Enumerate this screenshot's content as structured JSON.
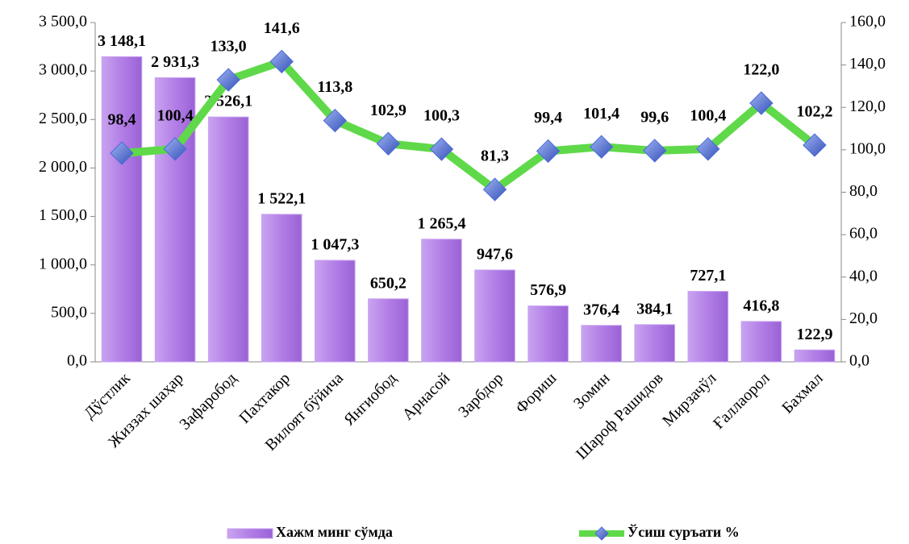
{
  "chart_data": {
    "type": "bar",
    "categories": [
      "Дўстлик",
      "Жиззах шаҳар",
      "Зафаробод",
      "Пахтакор",
      "Вилоят бўйича",
      "Янгиобод",
      "Арнасой",
      "Зарбдор",
      "Фориш",
      "Зомин",
      "Шароф Рашидов",
      "Мирзачўл",
      "Ғаллаорол",
      "Бахмал"
    ],
    "series": [
      {
        "name": "Хажм минг сўмда",
        "type": "bar",
        "color": "#b27ee6",
        "values": [
          3148.1,
          2931.3,
          2526.1,
          1522.1,
          1047.3,
          650.2,
          1265.4,
          947.6,
          576.9,
          376.4,
          384.1,
          727.1,
          416.8,
          122.9
        ],
        "value_labels": [
          "3 148,1",
          "2 931,3",
          "2 526,1",
          "1 522,1",
          "1 047,3",
          "650,2",
          "1 265,4",
          "947,6",
          "576,9",
          "376,4",
          "384,1",
          "727,1",
          "416,8",
          "122,9"
        ]
      },
      {
        "name": "Ўсиш суръати %",
        "type": "line",
        "axis": "y2",
        "color": "#5fd94a",
        "marker_color": "#4a6ad8",
        "values": [
          98.4,
          100.4,
          133.0,
          141.6,
          113.8,
          102.9,
          100.3,
          81.3,
          99.4,
          101.4,
          99.6,
          100.4,
          122.0,
          102.2
        ],
        "value_labels": [
          "98,4",
          "100,4",
          "133,0",
          "141,6",
          "113,8",
          "102,9",
          "100,3",
          "81,3",
          "99,4",
          "101,4",
          "99,6",
          "100,4",
          "122,0",
          "102,2"
        ]
      }
    ],
    "ylim": [
      0,
      3500
    ],
    "yticks": [
      {
        "value": 0,
        "label": "0,0"
      },
      {
        "value": 500,
        "label": "500,0"
      },
      {
        "value": 1000,
        "label": "1 000,0"
      },
      {
        "value": 1500,
        "label": "1 500,0"
      },
      {
        "value": 2000,
        "label": "2 000,0"
      },
      {
        "value": 2500,
        "label": "2 500,0"
      },
      {
        "value": 3000,
        "label": "3 000,0"
      },
      {
        "value": 3500,
        "label": "3 500,0"
      }
    ],
    "y2lim": [
      0,
      160
    ],
    "y2ticks": [
      {
        "value": 0,
        "label": "0,0"
      },
      {
        "value": 20,
        "label": "20,0"
      },
      {
        "value": 40,
        "label": "40,0"
      },
      {
        "value": 60,
        "label": "60,0"
      },
      {
        "value": 80,
        "label": "80,0"
      },
      {
        "value": 100,
        "label": "100,0"
      },
      {
        "value": 120,
        "label": "120,0"
      },
      {
        "value": 140,
        "label": "140,0"
      },
      {
        "value": 160,
        "label": "160,0"
      }
    ],
    "legend": "bottom",
    "grid": false
  }
}
